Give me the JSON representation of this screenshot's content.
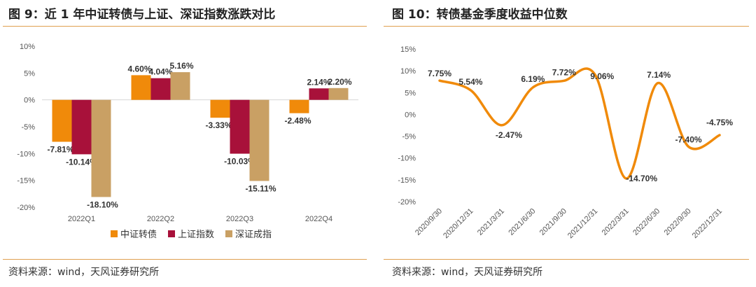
{
  "left": {
    "title": "图 9：近 1 年中证转债与上证、深证指数涨跌对比",
    "source": "资料来源：wind，天风证券研究所"
  },
  "right": {
    "title": "图 10：转债基金季度收益中位数",
    "source": "资料来源：wind，天风证券研究所"
  },
  "colors": {
    "series1": "#f08a0a",
    "series2": "#a8113a",
    "series3": "#c9a064",
    "line": "#f08a0a",
    "rule": "#e0a050"
  },
  "chart_data": [
    {
      "type": "bar",
      "title": "图 9：近 1 年中证转债与上证、深证指数涨跌对比",
      "categories": [
        "2022Q1",
        "2022Q2",
        "2022Q3",
        "2022Q4"
      ],
      "series": [
        {
          "name": "中证转债",
          "values": [
            -7.81,
            4.6,
            -3.33,
            -2.48
          ],
          "labels": [
            "-7.81%",
            "4.60%",
            "-3.33%",
            "-2.48%"
          ]
        },
        {
          "name": "上证指数",
          "values": [
            -10.14,
            4.04,
            -10.03,
            2.14
          ],
          "labels": [
            "-10.14%",
            "4.04%",
            "-10.03%",
            "2.14%"
          ]
        },
        {
          "name": "深证成指",
          "values": [
            -18.1,
            5.16,
            -15.11,
            2.2
          ],
          "labels": [
            "-18.10%",
            "5.16%",
            "-15.11%",
            "2.20%"
          ]
        }
      ],
      "ylim": [
        -20,
        10
      ],
      "yticks": [
        "10%",
        "5%",
        "0%",
        "-5%",
        "-10%",
        "-15%",
        "-20%"
      ],
      "legend_position": "bottom",
      "grid": false
    },
    {
      "type": "line",
      "title": "图 10：转债基金季度收益中位数",
      "x": [
        "2020/9/30",
        "2020/12/31",
        "2021/3/31",
        "2021/6/30",
        "2021/9/30",
        "2021/12/31",
        "2022/3/31",
        "2022/6/30",
        "2022/9/30",
        "2022/12/31"
      ],
      "values": [
        7.75,
        5.54,
        -2.47,
        6.19,
        7.72,
        9.06,
        -14.7,
        7.14,
        -7.4,
        -4.75
      ],
      "labels": [
        "7.75%",
        "5.54%",
        "-2.47%",
        "6.19%",
        "7.72%",
        "9.06%",
        "-14.70%",
        "7.14%",
        "-7.40%",
        "-4.75%"
      ],
      "ylim": [
        -20,
        15
      ],
      "yticks": [
        "15%",
        "10%",
        "5%",
        "0%",
        "-5%",
        "-10%",
        "-15%",
        "-20%"
      ],
      "smooth": true,
      "grid": false
    }
  ]
}
